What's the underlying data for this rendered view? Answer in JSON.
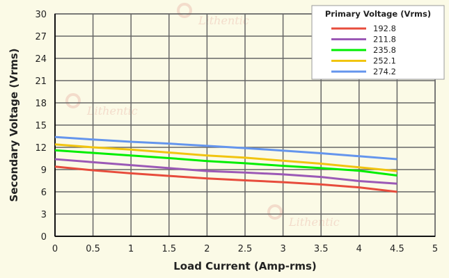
{
  "chart_data": {
    "type": "line",
    "title": "",
    "xlabel": "Load Current (Amp-rms)",
    "ylabel": "Secondary Voltage (Vrms)",
    "xlim": [
      0,
      5
    ],
    "ylim": [
      0,
      30
    ],
    "xticks": [
      0,
      0.5,
      1,
      1.5,
      2,
      2.5,
      3,
      3.5,
      4,
      4.5,
      5
    ],
    "yticks": [
      0,
      3,
      6,
      9,
      12,
      15,
      18,
      21,
      24,
      27,
      30
    ],
    "grid": true,
    "legend_title": "Primary Voltage (Vrms)",
    "legend_position": "top-right",
    "x": [
      0,
      0.5,
      1,
      1.5,
      2,
      2.5,
      3,
      3.5,
      4,
      4.5
    ],
    "series": [
      {
        "name": "192.8",
        "color": "#e74c3c",
        "values": [
          9.4,
          8.9,
          8.5,
          8.15,
          7.8,
          7.55,
          7.3,
          7.0,
          6.6,
          6.0
        ]
      },
      {
        "name": "211.8",
        "color": "#9b59b6",
        "values": [
          10.4,
          10.0,
          9.6,
          9.2,
          8.8,
          8.6,
          8.35,
          8.0,
          7.45,
          7.1
        ]
      },
      {
        "name": "235.8",
        "color": "#00ee00",
        "values": [
          11.6,
          11.25,
          10.9,
          10.55,
          10.15,
          9.85,
          9.5,
          9.2,
          8.85,
          8.2
        ]
      },
      {
        "name": "252.1",
        "color": "#f1c40f",
        "values": [
          12.4,
          12.0,
          11.7,
          11.3,
          10.9,
          10.6,
          10.2,
          9.8,
          9.3,
          8.8
        ]
      },
      {
        "name": "274.2",
        "color": "#6495ed",
        "values": [
          13.4,
          13.05,
          12.75,
          12.5,
          12.2,
          11.9,
          11.55,
          11.2,
          10.8,
          10.4
        ]
      }
    ],
    "watermark": "Lithentic"
  }
}
